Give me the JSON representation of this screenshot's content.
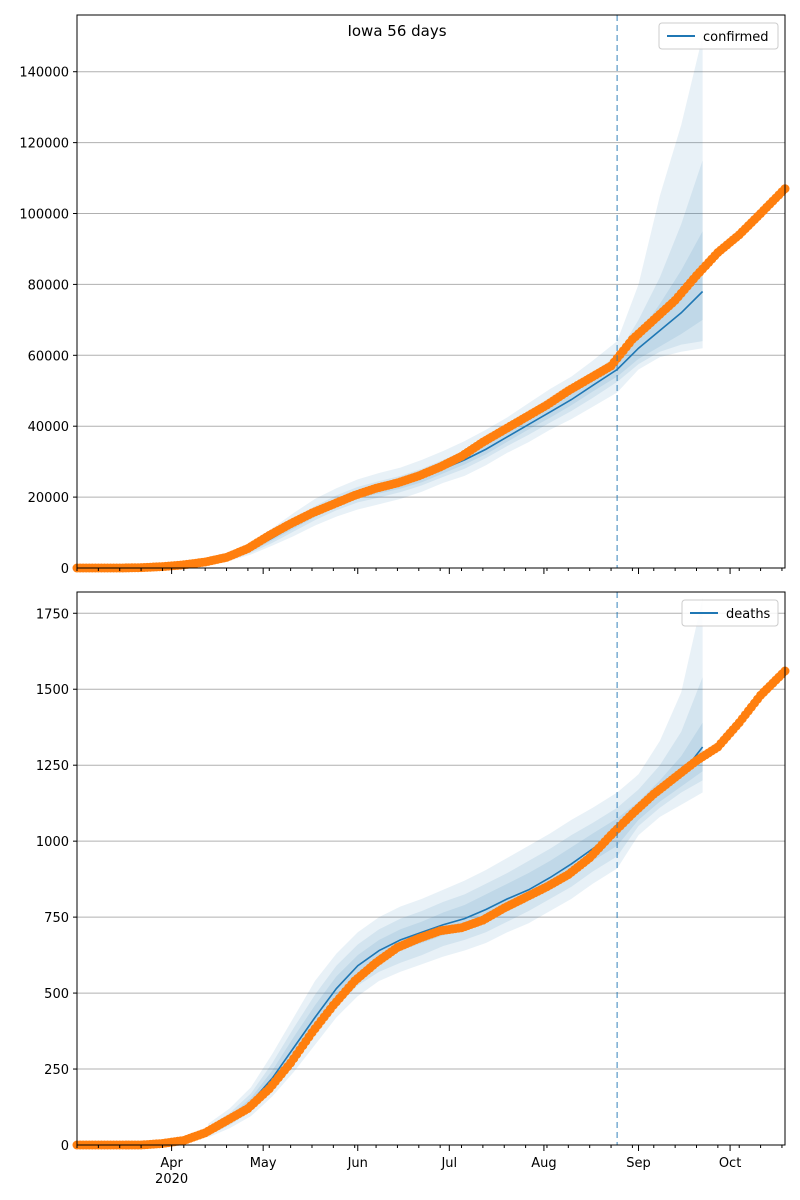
{
  "title": "Iowa 56 days",
  "colors": {
    "model": "#1f77b4",
    "observed": "#ff7f0e",
    "band": "#1f77b4",
    "grid": "#b0b0b0"
  },
  "chart_data": [
    {
      "type": "line",
      "title": "Iowa 56 days",
      "legend": "confirmed",
      "legend_placement": "top-right",
      "grid": "horizontal",
      "ylim": [
        0,
        156000
      ],
      "yticks": [
        0,
        20000,
        40000,
        60000,
        80000,
        100000,
        120000,
        140000
      ],
      "xlim": [
        "2020-03-01",
        "2020-10-19"
      ],
      "forecast_start": "2020-08-25",
      "model_x": [
        "2020-04-13",
        "2020-04-20",
        "2020-04-27",
        "2020-05-04",
        "2020-05-11",
        "2020-05-18",
        "2020-05-25",
        "2020-06-01",
        "2020-06-08",
        "2020-06-15",
        "2020-06-22",
        "2020-06-29",
        "2020-07-06",
        "2020-07-13",
        "2020-07-20",
        "2020-07-27",
        "2020-08-03",
        "2020-08-10",
        "2020-08-17",
        "2020-08-25",
        "2020-09-01",
        "2020-09-08",
        "2020-09-15",
        "2020-09-22"
      ],
      "model_y": [
        1500,
        3000,
        5200,
        8500,
        12000,
        15500,
        18500,
        20800,
        22200,
        23600,
        25500,
        28000,
        30500,
        33500,
        37000,
        40500,
        44000,
        47500,
        51500,
        56000,
        62000,
        67000,
        72000,
        78000
      ],
      "bands": [
        {
          "upper": [
            3000,
            4500,
            7200,
            11200,
            15500,
            19500,
            22500,
            25000,
            26800,
            28300,
            30500,
            33000,
            35800,
            39000,
            42500,
            46500,
            50500,
            54000,
            58500,
            64000,
            80000,
            105000,
            125000,
            150000
          ],
          "lower": [
            800,
            2000,
            3800,
            6300,
            9000,
            12000,
            14500,
            16500,
            18000,
            19500,
            21500,
            24000,
            26000,
            29000,
            32500,
            35500,
            39000,
            42000,
            45500,
            49500,
            56000,
            59500,
            61000,
            62000
          ]
        },
        {
          "upper": [
            2300,
            3800,
            6300,
            9900,
            13700,
            17500,
            20500,
            22900,
            24500,
            26000,
            28000,
            30500,
            33100,
            36300,
            39700,
            43500,
            47300,
            50800,
            55000,
            60000,
            70000,
            82000,
            97000,
            115000
          ],
          "lower": [
            1000,
            2300,
            4300,
            7100,
            10300,
            13500,
            16300,
            18500,
            19900,
            21400,
            23300,
            25700,
            28000,
            31000,
            34400,
            37600,
            41000,
            44300,
            48000,
            52500,
            57500,
            61000,
            63000,
            64000
          ]
        },
        {
          "upper": [
            1900,
            3400,
            5800,
            9200,
            12900,
            16600,
            19600,
            21900,
            23400,
            24800,
            26800,
            29300,
            31800,
            34900,
            38400,
            41900,
            45600,
            49100,
            53200,
            58000,
            66000,
            74500,
            84000,
            95000
          ],
          "lower": [
            1200,
            2600,
            4700,
            7800,
            11100,
            14400,
            17400,
            19700,
            21000,
            22400,
            24200,
            26700,
            29200,
            32100,
            35600,
            39100,
            42400,
            45900,
            49800,
            54000,
            59000,
            62500,
            66000,
            70000
          ]
        }
      ],
      "observed_x": [
        "2020-03-01",
        "2020-03-08",
        "2020-03-15",
        "2020-03-22",
        "2020-03-29",
        "2020-04-05",
        "2020-04-12",
        "2020-04-19",
        "2020-04-26",
        "2020-05-03",
        "2020-05-10",
        "2020-05-17",
        "2020-05-24",
        "2020-05-31",
        "2020-06-07",
        "2020-06-14",
        "2020-06-21",
        "2020-06-28",
        "2020-07-05",
        "2020-07-12",
        "2020-07-19",
        "2020-07-26",
        "2020-08-02",
        "2020-08-09",
        "2020-08-16",
        "2020-08-23",
        "2020-08-30",
        "2020-09-06",
        "2020-09-13",
        "2020-09-20",
        "2020-09-27",
        "2020-10-04",
        "2020-10-11",
        "2020-10-19"
      ],
      "observed_y": [
        0,
        0,
        0,
        100,
        400,
        900,
        1700,
        3000,
        5500,
        9200,
        12500,
        15500,
        18000,
        20500,
        22500,
        24000,
        26000,
        28500,
        31500,
        35500,
        39000,
        42500,
        46000,
        50000,
        53500,
        57000,
        64500,
        70000,
        75500,
        82500,
        89000,
        94000,
        100000,
        107000
      ]
    },
    {
      "type": "line",
      "legend": "deaths",
      "legend_placement": "top-right",
      "grid": "horizontal",
      "ylim": [
        0,
        1820
      ],
      "yticks": [
        0,
        250,
        500,
        750,
        1000,
        1250,
        1500,
        1750
      ],
      "xlim": [
        "2020-03-01",
        "2020-10-19"
      ],
      "forecast_start": "2020-08-25",
      "xticks": [
        "Apr\n2020",
        "May",
        "Jun",
        "Jul",
        "Aug",
        "Sep",
        "Oct"
      ],
      "model_x": [
        "2020-04-13",
        "2020-04-20",
        "2020-04-27",
        "2020-05-04",
        "2020-05-11",
        "2020-05-18",
        "2020-05-25",
        "2020-06-01",
        "2020-06-08",
        "2020-06-15",
        "2020-06-22",
        "2020-06-29",
        "2020-07-06",
        "2020-07-13",
        "2020-07-20",
        "2020-07-27",
        "2020-08-03",
        "2020-08-10",
        "2020-08-17",
        "2020-08-25",
        "2020-09-01",
        "2020-09-08",
        "2020-09-15",
        "2020-09-22"
      ],
      "model_y": [
        45,
        85,
        140,
        220,
        320,
        420,
        515,
        590,
        640,
        675,
        700,
        725,
        745,
        775,
        810,
        840,
        880,
        925,
        975,
        1030,
        1100,
        1160,
        1220,
        1310
      ],
      "bands": [
        {
          "upper": [
            70,
            120,
            190,
            300,
            420,
            540,
            630,
            700,
            750,
            785,
            810,
            840,
            870,
            905,
            945,
            985,
            1025,
            1070,
            1110,
            1160,
            1220,
            1330,
            1490,
            1800
          ],
          "lower": [
            25,
            55,
            95,
            160,
            240,
            330,
            420,
            490,
            540,
            570,
            595,
            620,
            640,
            665,
            700,
            730,
            770,
            810,
            860,
            910,
            1020,
            1080,
            1120,
            1160
          ]
        },
        {
          "upper": [
            60,
            105,
            170,
            270,
            385,
            495,
            590,
            660,
            710,
            745,
            770,
            800,
            825,
            860,
            895,
            935,
            975,
            1020,
            1060,
            1110,
            1170,
            1250,
            1360,
            1540
          ],
          "lower": [
            32,
            65,
            110,
            180,
            270,
            365,
            455,
            525,
            570,
            600,
            625,
            655,
            675,
            700,
            735,
            770,
            810,
            850,
            900,
            950,
            1050,
            1110,
            1160,
            1200
          ]
        },
        {
          "upper": [
            53,
            95,
            155,
            245,
            355,
            460,
            555,
            625,
            675,
            710,
            735,
            765,
            790,
            825,
            860,
            895,
            935,
            980,
            1025,
            1075,
            1130,
            1200,
            1280,
            1390
          ],
          "lower": [
            38,
            75,
            125,
            195,
            290,
            385,
            480,
            555,
            605,
            640,
            665,
            690,
            710,
            740,
            775,
            805,
            845,
            885,
            935,
            985,
            1070,
            1130,
            1180,
            1230
          ]
        }
      ],
      "observed_x": [
        "2020-03-01",
        "2020-03-08",
        "2020-03-15",
        "2020-03-22",
        "2020-03-29",
        "2020-04-05",
        "2020-04-12",
        "2020-04-19",
        "2020-04-26",
        "2020-05-03",
        "2020-05-10",
        "2020-05-17",
        "2020-05-24",
        "2020-05-31",
        "2020-06-07",
        "2020-06-14",
        "2020-06-21",
        "2020-06-28",
        "2020-07-05",
        "2020-07-12",
        "2020-07-19",
        "2020-07-26",
        "2020-08-02",
        "2020-08-09",
        "2020-08-16",
        "2020-08-23",
        "2020-08-30",
        "2020-09-06",
        "2020-09-13",
        "2020-09-20",
        "2020-09-27",
        "2020-10-04",
        "2020-10-11",
        "2020-10-19"
      ],
      "observed_y": [
        0,
        0,
        0,
        0,
        5,
        15,
        40,
        80,
        120,
        185,
        270,
        370,
        460,
        540,
        600,
        650,
        680,
        705,
        715,
        740,
        780,
        815,
        850,
        890,
        945,
        1020,
        1090,
        1155,
        1210,
        1265,
        1310,
        1390,
        1480,
        1560
      ]
    }
  ]
}
